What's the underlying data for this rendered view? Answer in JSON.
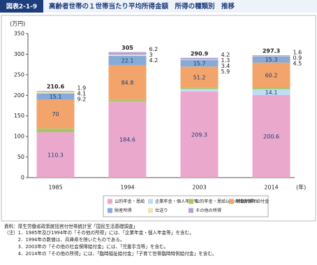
{
  "header": {
    "figure_no": "図表2-1-9",
    "title": "高齢者世帯の１世帯当たり平均所得金額　所得の種類別　推移"
  },
  "chart_data": {
    "type": "stacked-bar",
    "y_unit": "(万円)",
    "x_unit": "(年)",
    "categories": [
      "1985",
      "1994",
      "2003",
      "2014"
    ],
    "ylim": [
      0,
      350
    ],
    "yticks": [
      0,
      50,
      100,
      150,
      200,
      250,
      300,
      350
    ],
    "series": [
      {
        "name": "公的年金・恩給",
        "color": "#eaa9cc",
        "values": [
          110.3,
          184.6,
          209.3,
          200.6
        ]
      },
      {
        "name": "企業年金・個人年金等",
        "color": "#bfdcf2",
        "values": [
          null,
          null,
          5.9,
          14.1
        ]
      },
      {
        "name": "公的年金・恩給以外の社会保障給付金",
        "color": "#a9c46b",
        "values": [
          9.2,
          4.2,
          3.4,
          4.5
        ]
      },
      {
        "name": "稼働所得",
        "color": "#f3a46a",
        "values": [
          70,
          84.8,
          51.2,
          60.2
        ]
      },
      {
        "name": "財産所得",
        "color": "#86abd8",
        "values": [
          15.1,
          22.1,
          15.7,
          15.3
        ]
      },
      {
        "name": "仕送り",
        "color": "#ebe4b4",
        "values": [
          4.1,
          3,
          1.3,
          0.9
        ]
      },
      {
        "name": "その他の所得",
        "color": "#b7a0d4",
        "values": [
          1.9,
          6.2,
          4.2,
          1.6
        ]
      }
    ],
    "totals": [
      210.6,
      305,
      290.9,
      297.3
    ]
  },
  "notes": {
    "source": "資料：厚生労働省政策統括官付世帯統計室「国民生活基礎調査」",
    "items": [
      "（注）1．1985年及び1994年の「その他の所得」には、「企業年金・個人年金等」を含む。",
      "　　　2．1994年の数値は、兵庫県を除いたものである。",
      "　　　3．2003年の「その他の社会保障給付金」には、「児童手当等」を含む。",
      "　　　4．2014年の「その他の所得」には、「臨時福祉給付金」「子育て世帯臨時特例給付金」を含む。"
    ]
  }
}
